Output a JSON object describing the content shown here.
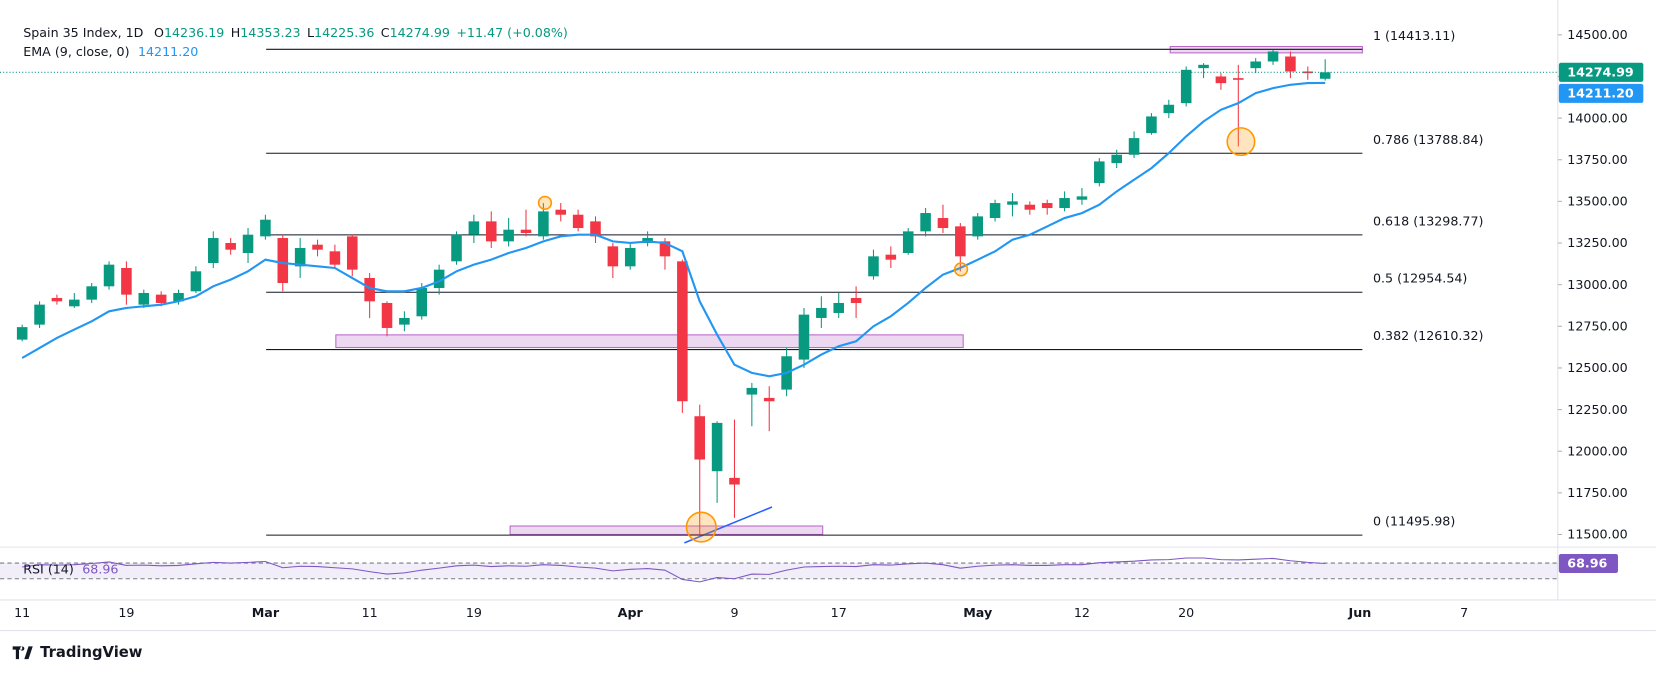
{
  "chart_data": {
    "type": "candlestick",
    "title": "Spain 35 Index, 1D",
    "ohlc_letters": [
      "O",
      "H",
      "L",
      "C"
    ],
    "change": "+11.47 (+0.08%)",
    "watermark": "TradingView",
    "categories": [
      "11",
      null,
      null,
      null,
      null,
      null,
      "19",
      null,
      null,
      null,
      null,
      null,
      null,
      null,
      "Mar",
      null,
      null,
      null,
      null,
      null,
      "11",
      null,
      null,
      null,
      null,
      null,
      "19",
      null,
      null,
      null,
      null,
      null,
      null,
      null,
      null,
      "Apr",
      null,
      null,
      null,
      null,
      null,
      "9",
      null,
      null,
      null,
      null,
      null,
      "17",
      null,
      null,
      null,
      null,
      null,
      null,
      null,
      "May",
      null,
      null,
      null,
      null,
      null,
      "12",
      null,
      null,
      null,
      null,
      null,
      "20",
      null,
      null,
      null,
      null,
      null,
      null,
      null,
      null,
      null,
      "Jun",
      null,
      null,
      null,
      null,
      null,
      "7",
      null,
      null,
      null,
      null,
      null
    ],
    "series": [
      {
        "name": "Spain 35 Index",
        "up_color": "#089981",
        "down_color": "#f23645",
        "open": [
          12670,
          12760,
          12920,
          12870,
          12910,
          12990,
          13100,
          12880,
          12940,
          12900,
          12960,
          13130,
          13250,
          13190,
          13290,
          13280,
          13110,
          13240,
          13200,
          13290,
          13040,
          12890,
          12760,
          12810,
          12980,
          13140,
          13300,
          13380,
          13260,
          13330,
          13290,
          13450,
          13420,
          13380,
          13230,
          13110,
          13250,
          13260,
          13140,
          12210,
          11880,
          11840,
          12340,
          12320,
          12370,
          12550,
          12800,
          12830,
          12920,
          13050,
          13180,
          13190,
          13320,
          13400,
          13350,
          13290,
          13400,
          13480,
          13480,
          13490,
          13460,
          13510,
          13610,
          13730,
          13780,
          13910,
          14030,
          14090,
          14300,
          14250,
          14240,
          14300,
          14340,
          14370,
          14280,
          14236.19,
          null,
          null,
          null,
          null,
          null,
          null,
          null,
          null,
          null,
          null,
          null,
          null,
          null
        ],
        "high": [
          12760,
          12900,
          12940,
          12950,
          13010,
          13140,
          13140,
          12970,
          12960,
          12970,
          13110,
          13320,
          13280,
          13340,
          13420,
          13300,
          13280,
          13270,
          13240,
          13300,
          13070,
          12900,
          12840,
          13010,
          13120,
          13320,
          13420,
          13440,
          13400,
          13450,
          13490,
          13490,
          13450,
          13410,
          13250,
          13250,
          13320,
          13280,
          13150,
          12280,
          12180,
          12190,
          12410,
          12390,
          12620,
          12860,
          12930,
          12950,
          12990,
          13210,
          13230,
          13340,
          13460,
          13480,
          13370,
          13430,
          13510,
          13550,
          13500,
          13510,
          13560,
          13580,
          13760,
          13810,
          13920,
          14030,
          14110,
          14310,
          14330,
          14270,
          14320,
          14360,
          14410,
          14400,
          14310,
          14353.23,
          null,
          null,
          null,
          null,
          null,
          null,
          null,
          null,
          null,
          null,
          null,
          null,
          null
        ],
        "low": [
          12660,
          12740,
          12880,
          12860,
          12890,
          12970,
          12880,
          12860,
          12870,
          12880,
          12950,
          13100,
          13180,
          13130,
          13270,
          12960,
          13040,
          13170,
          13100,
          13050,
          12800,
          12690,
          12720,
          12790,
          12940,
          13120,
          13250,
          13220,
          13230,
          13290,
          13270,
          13380,
          13320,
          13250,
          13040,
          13090,
          13230,
          13090,
          12230,
          11500,
          11690,
          11600,
          12150,
          12120,
          12330,
          12500,
          12740,
          12800,
          12800,
          13030,
          13100,
          13180,
          13290,
          13310,
          13080,
          13270,
          13380,
          13410,
          13420,
          13420,
          13440,
          13480,
          13590,
          13700,
          13760,
          13900,
          14000,
          14070,
          14240,
          14170,
          13830,
          14270,
          14320,
          14240,
          14230,
          14225.36,
          null,
          null,
          null,
          null,
          null,
          null,
          null,
          null,
          null,
          null,
          null,
          null,
          null
        ],
        "close": [
          12745,
          12880,
          12900,
          12910,
          12990,
          13120,
          12940,
          12950,
          12890,
          12950,
          13080,
          13280,
          13210,
          13300,
          13390,
          13010,
          13220,
          13210,
          13120,
          13090,
          12900,
          12740,
          12800,
          12980,
          13090,
          13300,
          13380,
          13260,
          13330,
          13310,
          13440,
          13420,
          13340,
          13290,
          13110,
          13220,
          13280,
          13170,
          12300,
          11950,
          12170,
          11800,
          12380,
          12300,
          12570,
          12820,
          12860,
          12890,
          12890,
          13170,
          13150,
          13320,
          13430,
          13340,
          13170,
          13410,
          13490,
          13500,
          13450,
          13460,
          13520,
          13530,
          13740,
          13780,
          13880,
          14010,
          14080,
          14290,
          14320,
          14210,
          14230,
          14340,
          14400,
          14280,
          14270,
          14274.99,
          null,
          null,
          null,
          null,
          null,
          null,
          null,
          null,
          null,
          null,
          null,
          null,
          null
        ]
      },
      {
        "name": "EMA (9, close, 0)",
        "color": "#2196f3",
        "value_label": "14211.20",
        "values": [
          12560,
          12620,
          12680,
          12730,
          12780,
          12840,
          12860,
          12870,
          12880,
          12900,
          12930,
          12990,
          13030,
          13080,
          13150,
          13130,
          13120,
          13110,
          13100,
          13040,
          12980,
          12960,
          12960,
          12980,
          13020,
          13080,
          13120,
          13150,
          13190,
          13220,
          13260,
          13290,
          13300,
          13300,
          13260,
          13250,
          13260,
          13250,
          13200,
          12900,
          12700,
          12520,
          12470,
          12450,
          12470,
          12520,
          12580,
          12630,
          12660,
          12750,
          12810,
          12890,
          12980,
          13060,
          13100,
          13150,
          13200,
          13270,
          13300,
          13350,
          13400,
          13430,
          13480,
          13560,
          13630,
          13700,
          13790,
          13890,
          13980,
          14050,
          14090,
          14150,
          14180,
          14200,
          14210,
          14211.2,
          null,
          null,
          null,
          null,
          null,
          null,
          null,
          null,
          null,
          null,
          null,
          null,
          null
        ]
      },
      {
        "name": "RSI (14)",
        "color": "#7e57c2",
        "axis": "y2",
        "values": [
          60,
          66,
          65,
          66,
          69,
          73,
          64,
          65,
          63,
          64,
          68,
          72,
          70,
          72,
          74,
          58,
          62,
          61,
          58,
          55,
          48,
          42,
          45,
          52,
          57,
          63,
          65,
          61,
          63,
          62,
          66,
          64,
          60,
          57,
          50,
          54,
          56,
          52,
          28,
          22,
          33,
          30,
          42,
          41,
          52,
          60,
          61,
          62,
          61,
          66,
          65,
          68,
          70,
          66,
          57,
          62,
          65,
          66,
          64,
          64,
          66,
          66,
          71,
          73,
          75,
          78,
          79,
          83,
          83,
          79,
          78,
          80,
          82,
          76,
          72,
          68.96,
          null,
          null,
          null,
          null,
          null,
          null,
          null,
          null,
          null,
          null,
          null,
          null,
          null
        ]
      }
    ],
    "ylim": [
      11443,
      14658
    ],
    "yticks": [
      {
        "value": 11500,
        "label": "11500.00"
      },
      {
        "value": 11750,
        "label": "11750.00"
      },
      {
        "value": 12000,
        "label": "12000.00"
      },
      {
        "value": 12250,
        "label": "12250.00"
      },
      {
        "value": 12500,
        "label": "12500.00"
      },
      {
        "value": 12750,
        "label": "12750.00"
      },
      {
        "value": 13000,
        "label": "13000.00"
      },
      {
        "value": 13250,
        "label": "13250.00"
      },
      {
        "value": 13500,
        "label": "13500.00"
      },
      {
        "value": 13750,
        "label": "13750.00"
      },
      {
        "value": 14000,
        "label": "14000.00"
      },
      {
        "value": 14250,
        "label": "14250.00"
      },
      {
        "value": 14500,
        "label": "14500.00"
      }
    ],
    "y2lim": [
      0,
      100
    ],
    "y2_levels": [
      70,
      30
    ],
    "levels": [
      {
        "value": 14413.11,
        "label": "1 (14413.11)"
      },
      {
        "value": 13788.84,
        "label": "0.786 (13788.84)"
      },
      {
        "value": 13298.77,
        "label": "0.618 (13298.77)"
      },
      {
        "value": 12954.54,
        "label": "0.5 (12954.54)"
      },
      {
        "value": 12610.32,
        "label": "0.382 (12610.32)"
      },
      {
        "value": 11495.98,
        "label": "0 (11495.98)"
      }
    ],
    "grid": false
  }
}
